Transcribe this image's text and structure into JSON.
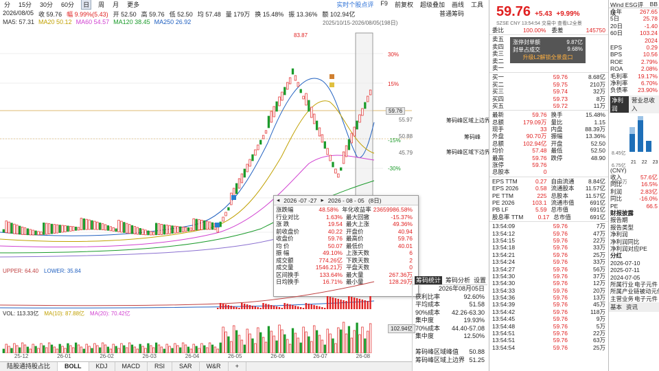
{
  "toolbar": {
    "periods": [
      "分",
      "15分",
      "30分",
      "60分",
      "日",
      "周",
      "月",
      "更多"
    ],
    "active_period": "日",
    "links": [
      "实时个股点评",
      "F9",
      "前复权",
      "超级叠加",
      "画线",
      "工具"
    ],
    "normal_chip": "普通筹码"
  },
  "info": {
    "date": "2026/08/05",
    "close_label": "收 59.76",
    "change_label": "幅 9.99%(5.43)",
    "open_label": "开 52.50",
    "high_label": "高 59.76",
    "low_label": "低 52.50",
    "avg_label": "均 57.48",
    "vol_label": "量 179万",
    "turn_label": "换 15.48%",
    "amp_label": "振 13.36%",
    "amt_label": "额 102.94亿"
  },
  "ma": {
    "ma5": "MA5: 57.31",
    "ma20": "MA20 50.12",
    "ma60": "MA60 54.57",
    "ma120": "MA120 38.45",
    "ma250": "MA250 26.92"
  },
  "range_note": "2025/10/15-2026/08/05(198日)",
  "chart_labels": {
    "peak": "83.87",
    "low": "50.07",
    "pct_levels": [
      "30%",
      "15%",
      "-15%",
      "-30%"
    ],
    "right_prices": [
      "55.97",
      "50.88",
      "45.79"
    ],
    "cur_price": "59.76",
    "chip_upper": "筹码峰区域上边界",
    "chip_peak": "筹码峰",
    "chip_lower": "筹码峰区域下边界"
  },
  "popup": {
    "start": "2026 -07 -27",
    "end": "2026 - 08 - 05",
    "days": "(8日)",
    "rows": [
      [
        "涨跌幅",
        "48.58%",
        "年化收益率",
        "23659986.58%"
      ],
      [
        "行业对比",
        "1.63%",
        "最大回撤",
        "-15.37%"
      ],
      [
        "涨 跌",
        "19.54",
        "最大上涨",
        "49.36%"
      ],
      [
        "前收盘价",
        "40.22",
        "开盘价",
        "40.94"
      ],
      [
        "收盘价",
        "59.76",
        "最高价",
        "59.76"
      ],
      [
        "均 价",
        "50.07",
        "最低价",
        "40.01"
      ],
      [
        "振 幅",
        "49.10%",
        "上涨天数",
        "6"
      ],
      [
        "成交额",
        "774.26亿",
        "下跌天数",
        "2"
      ],
      [
        "成交量",
        "1546.21万",
        "平盘天数",
        "0"
      ],
      [
        "区间换手",
        "133.64%",
        "最大量",
        "267.36万"
      ],
      [
        "日均换手",
        "16.71%",
        "最小量",
        "128.29万"
      ]
    ]
  },
  "boll": {
    "label": "BOLL(20,2)",
    "mid": "MID: 50.12",
    "upper": "UPPER: 64.40",
    "lower": "LOWER: 35.84"
  },
  "vol": {
    "vol": "VOL: 113.33亿",
    "ma10": "MA(10): 87.88亿",
    "ma20": "MA(20): 70.42亿",
    "tag": "102.94亿"
  },
  "xaxis": [
    "25-12",
    "26-01",
    "26-02",
    "26-03",
    "26-04",
    "26-05",
    "26-06",
    "26-07",
    "26-08"
  ],
  "bottom_tabs": [
    "陆股通持股占比",
    "BOLL",
    "KDJ",
    "MACD",
    "RSI",
    "SAR",
    "W&R",
    "+"
  ],
  "active_bottom_tab": "BOLL",
  "chip_stats": {
    "tabs": [
      "筹码统计",
      "筹码分析",
      "设置"
    ],
    "rows": [
      [
        "",
        "2026年08月05日"
      ],
      [
        "获利比率",
        "92.60%"
      ],
      [
        "平均成本",
        "51.58"
      ],
      [
        "90%成本",
        "42.26-63.30"
      ],
      [
        "集中度",
        "19.93%"
      ],
      [
        "70%成本",
        "44.40-57.08"
      ],
      [
        "集中度",
        "12.50%"
      ],
      [
        "",
        ""
      ],
      [
        "筹码峰区域峰值",
        "50.88"
      ],
      [
        "筹码峰区域上边界",
        "51.25"
      ]
    ]
  },
  "quote": {
    "price": "59.76",
    "change": "+5.43",
    "pct": "+9.99%",
    "sub": "SZSE  CNY  13:54:54  交易中  查看L2全景",
    "weibi": [
      "委比",
      "100.00%",
      "委差",
      "145750"
    ],
    "sells": [
      [
        "卖五",
        "",
        ""
      ],
      [
        "卖四",
        "",
        ""
      ],
      [
        "卖三",
        "",
        ""
      ],
      [
        "卖二",
        "",
        ""
      ],
      [
        "卖一",
        "",
        ""
      ]
    ],
    "overlay": [
      "涨停封单额",
      "9.87亿",
      "封单占成交",
      "9.68%",
      "升级L2解锁全景盘口"
    ],
    "buys": [
      [
        "买一",
        "59.76",
        "8.68亿"
      ],
      [
        "买二",
        "59.75",
        "210万"
      ],
      [
        "买三",
        "59.74",
        "32万"
      ],
      [
        "买四",
        "59.73",
        "8万"
      ],
      [
        "买五",
        "59.72",
        "11万"
      ]
    ],
    "stats": [
      [
        "最新",
        "59.76",
        "换手",
        "15.48%"
      ],
      [
        "总额",
        "179.09万",
        "量比",
        "1.15"
      ],
      [
        "现手",
        "33",
        "内盘",
        "88.39万"
      ],
      [
        "外盘",
        "90.70万",
        "振幅",
        "13.36%"
      ],
      [
        "总额",
        "102.94亿",
        "开盘",
        "52.50"
      ],
      [
        "均价",
        "57.48",
        "最低",
        "52.50"
      ],
      [
        "最高",
        "59.76",
        "跌停",
        "48.90"
      ],
      [
        "涨停",
        "59.76",
        "",
        ""
      ],
      [
        "总股本",
        "0",
        "",
        ""
      ]
    ],
    "fin": [
      [
        "EPS TTM",
        "0.27",
        "自由流通",
        "8.84亿"
      ],
      [
        "EPS 2026",
        "0.58",
        "流通股本",
        "11.57亿"
      ],
      [
        "PE TTM",
        "225",
        "总股本",
        "11.57亿"
      ],
      [
        "PE 2026",
        "103.1",
        "流通市值",
        "691亿"
      ],
      [
        "PB LF",
        "5.59",
        "总市值",
        "691亿"
      ],
      [
        "股息率 TTM",
        "0.17",
        "总市值",
        "691亿"
      ]
    ],
    "ticks": [
      [
        "13:54:09",
        "59.76",
        "7万"
      ],
      [
        "13:54:12",
        "59.76",
        "47万"
      ],
      [
        "13:54:15",
        "59.76",
        "22万"
      ],
      [
        "13:54:18",
        "59.76",
        "33万"
      ],
      [
        "13:54:21",
        "59.76",
        "25万"
      ],
      [
        "13:54:24",
        "59.76",
        "33万"
      ],
      [
        "13:54:27",
        "59.76",
        "56万"
      ],
      [
        "13:54:30",
        "59.76",
        "37万"
      ],
      [
        "13:54:30",
        "59.76",
        "12万"
      ],
      [
        "13:54:33",
        "59.76",
        "20万"
      ],
      [
        "13:54:36",
        "59.76",
        "13万"
      ],
      [
        "13:54:39",
        "59.76",
        "45万"
      ],
      [
        "13:54:42",
        "59.76",
        "118万"
      ],
      [
        "13:54:45",
        "59.76",
        "9万"
      ],
      [
        "13:54:48",
        "59.76",
        "5万"
      ],
      [
        "13:54:51",
        "59.76",
        "22万"
      ],
      [
        "13:54:51",
        "59.76",
        "63万"
      ],
      [
        "13:54:54",
        "59.76",
        "25万"
      ]
    ]
  },
  "side": {
    "tabs": [
      "Wind ESG评级",
      "BB"
    ],
    "rows": [
      [
        "今年",
        "267.65"
      ],
      [
        "5日",
        "25.78"
      ],
      [
        "20日",
        "-1.40"
      ],
      [
        "60日",
        "103.24"
      ],
      [
        "",
        "2024"
      ],
      [
        "EPS",
        "0.29"
      ],
      [
        "BPS",
        "10.56"
      ],
      [
        "ROE",
        "2.79%"
      ],
      [
        "ROA",
        "2.08%"
      ],
      [
        "毛利率",
        "19.17%"
      ],
      [
        "净利率",
        "6.70%"
      ],
      [
        "负债率",
        "23.90%"
      ]
    ],
    "section": [
      "净利润",
      "营业总收入"
    ],
    "mini_bar_labels": [
      "8.45亿",
      "6.75亿",
      "6000万"
    ],
    "mini_bar_years": [
      "21",
      "22",
      "23"
    ],
    "cny": "(CNY)",
    "rows2": [
      [
        "收入",
        "57.6亿"
      ],
      [
        "同比",
        "16.5%"
      ],
      [
        "利润",
        "2.83亿"
      ],
      [
        "同比",
        "-16.0%"
      ],
      [
        "PE",
        "66.5"
      ]
    ],
    "report_title": "财报披露",
    "report_items": [
      "报告期",
      "报告类型",
      "净利润",
      "净利润同比",
      "净利润对应PE"
    ],
    "dividend_title": "分红",
    "dividend_dates": [
      "2026-07-10",
      "2025-07-11",
      "2024-07-05"
    ],
    "industry": [
      "所属行业",
      "电子元件",
      "所属产业链",
      "被动元件",
      "主营业务",
      "电子元件"
    ],
    "bottom": [
      "基本",
      "资讯"
    ]
  }
}
